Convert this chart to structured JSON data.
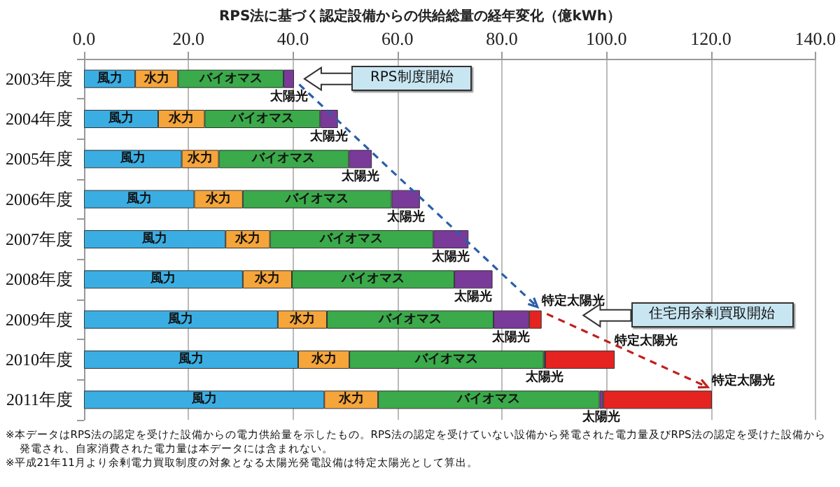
{
  "chart_data": {
    "type": "bar",
    "orientation": "horizontal",
    "stacked": true,
    "title": "RPS法に基づく認定設備からの供給総量の経年変化（億kWh）",
    "categories": [
      "2003年度",
      "2004年度",
      "2005年度",
      "2006年度",
      "2007年度",
      "2008年度",
      "2009年度",
      "2010年度",
      "2011年度"
    ],
    "series": [
      {
        "name": "風力",
        "color": "#3aaee3",
        "values": [
          9.8,
          14.2,
          18.7,
          21.1,
          27.1,
          30.4,
          37.1,
          41.0,
          46.0
        ]
      },
      {
        "name": "水力",
        "color": "#f5a53a",
        "values": [
          8.2,
          8.9,
          7.1,
          9.3,
          8.5,
          9.4,
          9.4,
          9.8,
          10.3
        ]
      },
      {
        "name": "バイオマス",
        "color": "#3aaa4a",
        "values": [
          20.2,
          22.1,
          24.9,
          28.5,
          31.3,
          31.1,
          31.9,
          37.2,
          42.4
        ]
      },
      {
        "name": "太陽光",
        "color": "#7a3a9a",
        "values": [
          2.0,
          3.4,
          4.4,
          5.4,
          6.7,
          7.3,
          6.8,
          0.3,
          0.7
        ]
      },
      {
        "name": "特定太陽光",
        "color": "#e52320",
        "values": [
          null,
          null,
          null,
          null,
          null,
          null,
          2.4,
          13.3,
          20.8
        ]
      }
    ],
    "xlim": [
      0,
      140
    ],
    "xticks": [
      {
        "value": 0,
        "label": "0.0"
      },
      {
        "value": 20,
        "label": "20.0"
      },
      {
        "value": 40,
        "label": "40.0"
      },
      {
        "value": 60,
        "label": "60.0"
      },
      {
        "value": 80,
        "label": "80.0"
      },
      {
        "value": 100,
        "label": "100.0"
      },
      {
        "value": 120,
        "label": "120.0"
      },
      {
        "value": 140,
        "label": "140.0"
      }
    ],
    "grid": "x",
    "legend": false,
    "annotations": [
      "RPS制度開始",
      "住宅用余剰買取開始",
      "※本データはRPS法の認定を受けた設備からの電力供給量を示したもの。RPS法の認定を受けていない設備から発電された電力量及びRPS法の認定を受けた設備から発電され、自家消費された電力量は本データには含まれない。",
      "※平成21年11月より余剰電力買取制度の対象となる太陽光発電設備は特定太陽光として算出。"
    ]
  }
}
